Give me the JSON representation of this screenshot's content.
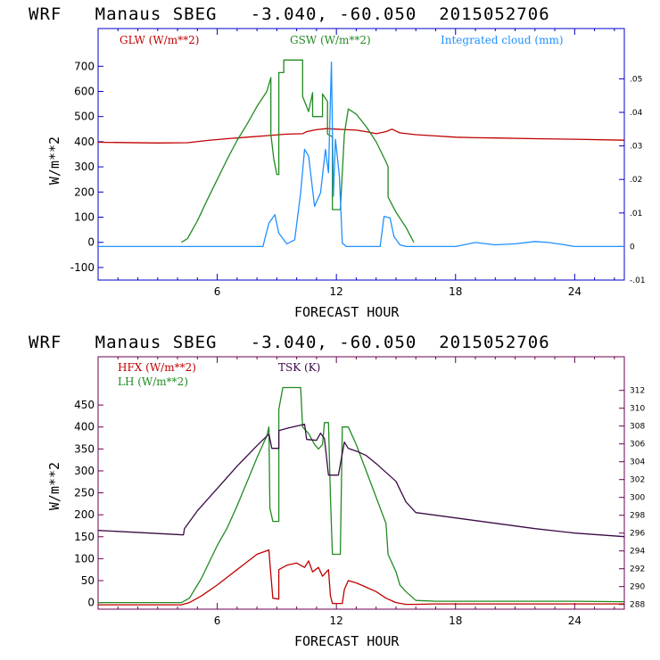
{
  "colors": {
    "red": "#c00000",
    "green": "#228b22",
    "blue": "#1e90ff",
    "purple": "#3b0a45",
    "frame_top": "#0000c8",
    "frame_bottom": "#6b0050"
  },
  "chart_data": [
    {
      "type": "line",
      "title": "WRF   Manaus SBEG   -3.040, -60.050  2015052706",
      "xlabel": "FORECAST HOUR",
      "ylabel": "W/m**2",
      "xlim": [
        0,
        26.5
      ],
      "ylim": [
        -150,
        850
      ],
      "y2lim": [
        -0.01,
        0.065
      ],
      "xticks": [
        6,
        12,
        18,
        24
      ],
      "yticks": [
        -100,
        0,
        100,
        200,
        300,
        400,
        500,
        600,
        700
      ],
      "y2ticks": [
        -0.01,
        0,
        0.01,
        0.02,
        0.03,
        0.04,
        0.05
      ],
      "y2tick_labels": [
        "-.01",
        "0",
        ".01",
        ".02",
        ".03",
        ".04",
        ".05"
      ],
      "series": [
        {
          "name": "GLW (W/m**2)",
          "color": "red",
          "axis": "left",
          "points": [
            [
              0,
              398
            ],
            [
              3,
              395
            ],
            [
              4.5,
              396
            ],
            [
              5.5,
              405
            ],
            [
              6.5,
              412
            ],
            [
              7.5,
              418
            ],
            [
              8.5,
              424
            ],
            [
              9.5,
              430
            ],
            [
              10.3,
              432
            ],
            [
              10.5,
              440
            ],
            [
              11,
              448
            ],
            [
              11.5,
              452
            ],
            [
              12,
              450
            ],
            [
              12.5,
              448
            ],
            [
              13,
              446
            ],
            [
              13.5,
              440
            ],
            [
              14,
              432
            ],
            [
              14.5,
              440
            ],
            [
              14.8,
              450
            ],
            [
              15.2,
              435
            ],
            [
              16,
              428
            ],
            [
              17,
              423
            ],
            [
              18,
              418
            ],
            [
              19,
              416
            ],
            [
              20,
              415
            ],
            [
              22,
              412
            ],
            [
              24,
              410
            ],
            [
              26.5,
              406
            ]
          ]
        },
        {
          "name": "GSW (W/m**2)",
          "color": "green",
          "axis": "left",
          "points": [
            [
              4.2,
              0
            ],
            [
              4.5,
              15
            ],
            [
              5,
              85
            ],
            [
              5.5,
              170
            ],
            [
              6,
              250
            ],
            [
              6.5,
              330
            ],
            [
              7,
              405
            ],
            [
              7.5,
              470
            ],
            [
              8,
              540
            ],
            [
              8.5,
              600
            ],
            [
              8.7,
              655
            ],
            [
              8.7,
              430
            ],
            [
              8.85,
              330
            ],
            [
              9,
              270
            ],
            [
              9.1,
              270
            ],
            [
              9.1,
              675
            ],
            [
              9.35,
              675
            ],
            [
              9.35,
              725
            ],
            [
              10.3,
              725
            ],
            [
              10.3,
              580
            ],
            [
              10.6,
              520
            ],
            [
              10.8,
              595
            ],
            [
              10.8,
              500
            ],
            [
              11,
              500
            ],
            [
              11.3,
              500
            ],
            [
              11.3,
              590
            ],
            [
              11.55,
              560
            ],
            [
              11.55,
              430
            ],
            [
              11.8,
              420
            ],
            [
              11.8,
              130
            ],
            [
              12.2,
              130
            ],
            [
              12.4,
              430
            ],
            [
              12.6,
              530
            ],
            [
              13,
              510
            ],
            [
              13.5,
              460
            ],
            [
              14,
              400
            ],
            [
              14.5,
              320
            ],
            [
              14.6,
              300
            ],
            [
              14.6,
              180
            ],
            [
              15,
              120
            ],
            [
              15.5,
              60
            ],
            [
              15.9,
              0
            ]
          ]
        },
        {
          "name": "Integrated cloud (mm)",
          "color": "blue",
          "axis": "right",
          "points": [
            [
              0,
              0
            ],
            [
              8.3,
              0
            ],
            [
              8.6,
              0.007
            ],
            [
              8.9,
              0.0095
            ],
            [
              9.1,
              0.004
            ],
            [
              9.5,
              0.0008
            ],
            [
              9.9,
              0.002
            ],
            [
              10.2,
              0.016
            ],
            [
              10.4,
              0.029
            ],
            [
              10.6,
              0.027
            ],
            [
              10.9,
              0.012
            ],
            [
              11.2,
              0.016
            ],
            [
              11.45,
              0.029
            ],
            [
              11.6,
              0.022
            ],
            [
              11.75,
              0.055
            ],
            [
              11.85,
              0.015
            ],
            [
              11.95,
              0.032
            ],
            [
              12.15,
              0.021
            ],
            [
              12.3,
              0.001
            ],
            [
              12.5,
              0
            ],
            [
              14.2,
              0
            ],
            [
              14.4,
              0.009
            ],
            [
              14.7,
              0.0085
            ],
            [
              14.9,
              0.003
            ],
            [
              15.2,
              0.0005
            ],
            [
              15.5,
              0
            ],
            [
              18,
              0
            ],
            [
              19,
              0.0012
            ],
            [
              20,
              0.0005
            ],
            [
              21,
              0.0008
            ],
            [
              22,
              0.0015
            ],
            [
              22.7,
              0.0012
            ],
            [
              23.5,
              0.0005
            ],
            [
              24,
              0
            ],
            [
              26.5,
              0
            ]
          ]
        }
      ]
    },
    {
      "type": "line",
      "title": "WRF   Manaus SBEG   -3.040, -60.050  2015052706",
      "xlabel": "FORECAST HOUR",
      "ylabel": "W/m**2",
      "xlim": [
        0,
        26.5
      ],
      "ylim": [
        -15,
        560
      ],
      "y2lim": [
        287.47,
        315.77
      ],
      "xticks": [
        6,
        12,
        18,
        24
      ],
      "yticks": [
        0,
        50,
        100,
        150,
        200,
        250,
        300,
        350,
        400,
        450
      ],
      "y2ticks": [
        288,
        290,
        292,
        294,
        296,
        298,
        300,
        302,
        304,
        306,
        308,
        310,
        312
      ],
      "y2tick_labels": [
        "288",
        "290",
        "292",
        "294",
        "296",
        "298",
        "300",
        "302",
        "304",
        "306",
        "308",
        "310",
        "312"
      ],
      "series": [
        {
          "name": "HFX (W/m**2)",
          "color": "red",
          "axis": "left",
          "points": [
            [
              0,
              -5
            ],
            [
              4.2,
              -5
            ],
            [
              4.6,
              0
            ],
            [
              5.2,
              15
            ],
            [
              6,
              40
            ],
            [
              7,
              75
            ],
            [
              8,
              110
            ],
            [
              8.6,
              120
            ],
            [
              8.65,
              90
            ],
            [
              8.8,
              10
            ],
            [
              9.1,
              8
            ],
            [
              9.1,
              75
            ],
            [
              9.5,
              85
            ],
            [
              10,
              90
            ],
            [
              10.4,
              80
            ],
            [
              10.6,
              95
            ],
            [
              10.8,
              70
            ],
            [
              11.1,
              80
            ],
            [
              11.3,
              60
            ],
            [
              11.6,
              75
            ],
            [
              11.7,
              15
            ],
            [
              11.8,
              -2
            ],
            [
              12.3,
              -2
            ],
            [
              12.4,
              30
            ],
            [
              12.6,
              50
            ],
            [
              13,
              45
            ],
            [
              13.5,
              35
            ],
            [
              14,
              25
            ],
            [
              14.5,
              10
            ],
            [
              15,
              0
            ],
            [
              15.5,
              -4
            ],
            [
              16,
              -4
            ],
            [
              17,
              -3
            ],
            [
              20,
              -3
            ],
            [
              24,
              -3
            ],
            [
              26.5,
              -3
            ]
          ]
        },
        {
          "name": "LH (W/m**2)",
          "color": "green",
          "axis": "left",
          "points": [
            [
              0,
              0
            ],
            [
              4.2,
              0
            ],
            [
              4.6,
              10
            ],
            [
              5.2,
              55
            ],
            [
              6,
              130
            ],
            [
              6.5,
              170
            ],
            [
              7,
              220
            ],
            [
              7.5,
              275
            ],
            [
              8,
              330
            ],
            [
              8.5,
              380
            ],
            [
              8.6,
              400
            ],
            [
              8.65,
              215
            ],
            [
              8.8,
              185
            ],
            [
              9.1,
              185
            ],
            [
              9.1,
              440
            ],
            [
              9.3,
              490
            ],
            [
              10.2,
              490
            ],
            [
              10.3,
              400
            ],
            [
              10.6,
              385
            ],
            [
              10.9,
              360
            ],
            [
              11.1,
              350
            ],
            [
              11.3,
              360
            ],
            [
              11.4,
              410
            ],
            [
              11.6,
              410
            ],
            [
              11.7,
              240
            ],
            [
              11.8,
              110
            ],
            [
              12.2,
              110
            ],
            [
              12.3,
              400
            ],
            [
              12.6,
              400
            ],
            [
              13,
              360
            ],
            [
              13.5,
              300
            ],
            [
              14,
              240
            ],
            [
              14.5,
              180
            ],
            [
              14.6,
              110
            ],
            [
              15,
              70
            ],
            [
              15.2,
              40
            ],
            [
              15.5,
              25
            ],
            [
              16,
              5
            ],
            [
              17,
              3
            ],
            [
              20,
              3
            ],
            [
              24,
              3
            ],
            [
              26.5,
              2
            ]
          ]
        },
        {
          "name": "TSK (K)",
          "color": "purple",
          "axis": "right",
          "points": [
            [
              0,
              296.3
            ],
            [
              4.3,
              295.8
            ],
            [
              4.35,
              296.5
            ],
            [
              5,
              298.5
            ],
            [
              6,
              301
            ],
            [
              7,
              303.5
            ],
            [
              8,
              305.8
            ],
            [
              8.6,
              307.1
            ],
            [
              8.75,
              305.5
            ],
            [
              9.1,
              305.5
            ],
            [
              9.1,
              307.5
            ],
            [
              9.6,
              307.8
            ],
            [
              10.4,
              308.2
            ],
            [
              10.5,
              306.5
            ],
            [
              11,
              306.4
            ],
            [
              11.2,
              307.2
            ],
            [
              11.4,
              306.6
            ],
            [
              11.6,
              302.5
            ],
            [
              12.1,
              302.5
            ],
            [
              12.4,
              306.2
            ],
            [
              12.6,
              305.5
            ],
            [
              13,
              305.2
            ],
            [
              13.5,
              304.7
            ],
            [
              14,
              303.8
            ],
            [
              14.5,
              302.8
            ],
            [
              15,
              301.8
            ],
            [
              15.5,
              299.5
            ],
            [
              16,
              298.3
            ],
            [
              18,
              297.7
            ],
            [
              20,
              297.1
            ],
            [
              22,
              296.5
            ],
            [
              24,
              296
            ],
            [
              26.5,
              295.6
            ]
          ]
        }
      ]
    }
  ]
}
